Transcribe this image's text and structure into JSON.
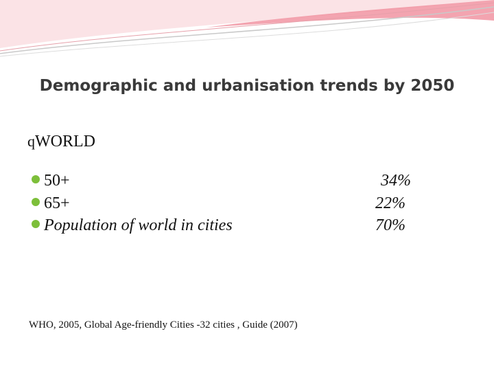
{
  "title": "Demographic and urbanisation trends by 2050",
  "section": {
    "marker": "q",
    "heading": "WORLD"
  },
  "items": [
    {
      "label": "50+",
      "value": "34%"
    },
    {
      "label": "65+",
      "value": "22%"
    },
    {
      "label": "Population of world in cities",
      "value": "70%"
    }
  ],
  "citation": "WHO, 2005, Global Age-friendly Cities -32 cities , Guide (2007)"
}
